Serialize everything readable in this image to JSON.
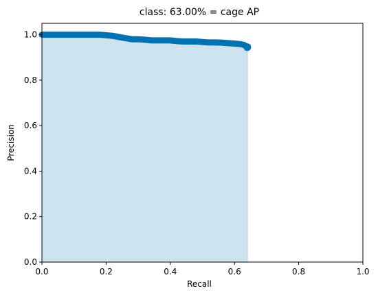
{
  "chart_data": {
    "type": "area",
    "title": "class: 63.00% = cage AP",
    "xlabel": "Recall",
    "ylabel": "Precision",
    "xlim": [
      0.0,
      1.0
    ],
    "ylim": [
      0.0,
      1.05
    ],
    "x_ticks": [
      "0.0",
      "0.2",
      "0.4",
      "0.6",
      "0.8",
      "1.0"
    ],
    "x_tick_values": [
      0.0,
      0.2,
      0.4,
      0.6,
      0.8,
      1.0
    ],
    "y_ticks": [
      "0.0",
      "0.2",
      "0.4",
      "0.6",
      "0.8",
      "1.0"
    ],
    "y_tick_values": [
      0.0,
      0.2,
      0.4,
      0.6,
      0.8,
      1.0
    ],
    "grid": false,
    "colors": {
      "line": "#0072B2",
      "fill": "#cde3f0",
      "edge": "#c8c8c8"
    },
    "series": [
      {
        "x": [
          0.0,
          0.05,
          0.1,
          0.15,
          0.18,
          0.22,
          0.24,
          0.26,
          0.28,
          0.3,
          0.32,
          0.34,
          0.36,
          0.38,
          0.4,
          0.42,
          0.44,
          0.46,
          0.48,
          0.5,
          0.52,
          0.54,
          0.56,
          0.58,
          0.6,
          0.62,
          0.63,
          0.64
        ],
        "y": [
          1.0,
          1.0,
          1.0,
          1.0,
          1.0,
          0.995,
          0.99,
          0.985,
          0.98,
          0.98,
          0.978,
          0.975,
          0.975,
          0.975,
          0.975,
          0.972,
          0.97,
          0.97,
          0.97,
          0.968,
          0.966,
          0.966,
          0.965,
          0.963,
          0.961,
          0.958,
          0.955,
          0.945
        ]
      }
    ]
  }
}
